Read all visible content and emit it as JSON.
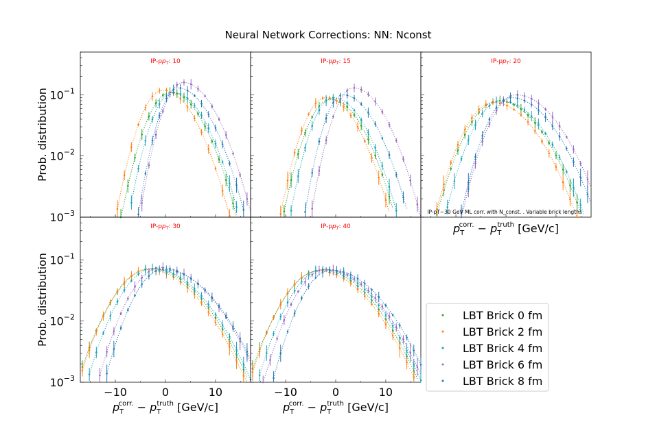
{
  "title": "Neural Network Corrections: NN: Nconst",
  "ylabel": "Prob. distribution",
  "xlabel": {
    "base": "p",
    "sub1": "T",
    "sup1": "corr.",
    "minus": " − ",
    "sub2": "T",
    "sup2": "truth",
    "unit": " [GeV/c]"
  },
  "annotation": "IP-pT~30 GeV ML corr. with N_const. . Variable brick lengths",
  "panel_title_prefix": "IP-p",
  "panel_title_sub": "T",
  "panel_title_suffix": ": ",
  "y_ticks": [
    {
      "label": "10",
      "exp": "−3"
    },
    {
      "label": "10",
      "exp": "−2"
    },
    {
      "label": "10",
      "exp": "−1"
    }
  ],
  "x_ticks": [
    "−10",
    "0",
    "10"
  ],
  "colors": {
    "Brick 0": "#2ca02c",
    "Brick 2": "#ff7f0e",
    "Brick 4": "#17a2b8",
    "Brick 6": "#9467bd",
    "Brick 8": "#1f77b4",
    "panel_title": "#ff0000"
  },
  "legend": {
    "placement": "lower-right (empty 6th panel)",
    "entries": [
      "LBT Brick 0 fm",
      "LBT Brick 2 fm",
      "LBT Brick 4 fm",
      "LBT Brick 6 fm",
      "LBT Brick 8 fm"
    ]
  },
  "chart_data": [
    {
      "type": "scatter",
      "panel": "IP-pT: 10",
      "ip_pt": "10",
      "yscale": "log",
      "ylim": [
        0.001,
        0.5
      ],
      "xlim": [
        -17,
        17
      ],
      "series": [
        {
          "name": "LBT Brick 0 fm",
          "color": "#2ca02c",
          "peak_x": 1,
          "peak_y": 0.11
        },
        {
          "name": "LBT Brick 2 fm",
          "color": "#ff7f0e",
          "peak_x": -0.5,
          "peak_y": 0.12
        },
        {
          "name": "LBT Brick 4 fm",
          "color": "#17a2b8",
          "peak_x": 1.5,
          "peak_y": 0.11
        },
        {
          "name": "LBT Brick 6 fm",
          "color": "#9467bd",
          "peak_x": 3.5,
          "peak_y": 0.16
        },
        {
          "name": "LBT Brick 8 fm",
          "color": "#1f77b4",
          "peak_x": 2.5,
          "peak_y": 0.13
        }
      ]
    },
    {
      "type": "scatter",
      "panel": "IP-pT: 15",
      "ip_pt": "15",
      "yscale": "log",
      "ylim": [
        0.001,
        0.5
      ],
      "xlim": [
        -17,
        17
      ],
      "series": [
        {
          "name": "LBT Brick 0 fm",
          "color": "#2ca02c",
          "peak_x": -1,
          "peak_y": 0.085
        },
        {
          "name": "LBT Brick 2 fm",
          "color": "#ff7f0e",
          "peak_x": -2,
          "peak_y": 0.09
        },
        {
          "name": "LBT Brick 4 fm",
          "color": "#17a2b8",
          "peak_x": -0.5,
          "peak_y": 0.09
        },
        {
          "name": "LBT Brick 6 fm",
          "color": "#9467bd",
          "peak_x": 3.5,
          "peak_y": 0.13
        },
        {
          "name": "LBT Brick 8 fm",
          "color": "#1f77b4",
          "peak_x": 1.5,
          "peak_y": 0.1
        }
      ]
    },
    {
      "type": "scatter",
      "panel": "IP-pT: 20",
      "ip_pt": "20",
      "yscale": "log",
      "ylim": [
        0.001,
        0.5
      ],
      "xlim": [
        -17,
        17
      ],
      "series": [
        {
          "name": "LBT Brick 0 fm",
          "color": "#2ca02c",
          "peak_x": -1.5,
          "peak_y": 0.08
        },
        {
          "name": "LBT Brick 2 fm",
          "color": "#ff7f0e",
          "peak_x": -2.5,
          "peak_y": 0.075
        },
        {
          "name": "LBT Brick 4 fm",
          "color": "#17a2b8",
          "peak_x": -1,
          "peak_y": 0.08
        },
        {
          "name": "LBT Brick 6 fm",
          "color": "#9467bd",
          "peak_x": 2,
          "peak_y": 0.1
        },
        {
          "name": "LBT Brick 8 fm",
          "color": "#1f77b4",
          "peak_x": 1,
          "peak_y": 0.09
        }
      ]
    },
    {
      "type": "scatter",
      "panel": "IP-pT: 30",
      "ip_pt": "30",
      "yscale": "log",
      "ylim": [
        0.001,
        0.5
      ],
      "xlim": [
        -17,
        17
      ],
      "series": [
        {
          "name": "LBT Brick 0 fm",
          "color": "#2ca02c",
          "peak_x": -3,
          "peak_y": 0.072
        },
        {
          "name": "LBT Brick 2 fm",
          "color": "#ff7f0e",
          "peak_x": -3.5,
          "peak_y": 0.07
        },
        {
          "name": "LBT Brick 4 fm",
          "color": "#17a2b8",
          "peak_x": -2.5,
          "peak_y": 0.072
        },
        {
          "name": "LBT Brick 6 fm",
          "color": "#9467bd",
          "peak_x": -1,
          "peak_y": 0.075
        },
        {
          "name": "LBT Brick 8 fm",
          "color": "#1f77b4",
          "peak_x": -0.5,
          "peak_y": 0.07
        }
      ]
    },
    {
      "type": "scatter",
      "panel": "IP-pT: 40",
      "ip_pt": "40",
      "yscale": "log",
      "ylim": [
        0.001,
        0.5
      ],
      "xlim": [
        -17,
        17
      ],
      "series": [
        {
          "name": "LBT Brick 0 fm",
          "color": "#2ca02c",
          "peak_x": -3,
          "peak_y": 0.068
        },
        {
          "name": "LBT Brick 2 fm",
          "color": "#ff7f0e",
          "peak_x": -3.5,
          "peak_y": 0.066
        },
        {
          "name": "LBT Brick 4 fm",
          "color": "#17a2b8",
          "peak_x": -2.5,
          "peak_y": 0.07
        },
        {
          "name": "LBT Brick 6 fm",
          "color": "#9467bd",
          "peak_x": -2,
          "peak_y": 0.07
        },
        {
          "name": "LBT Brick 8 fm",
          "color": "#1f77b4",
          "peak_x": -1,
          "peak_y": 0.068
        }
      ]
    }
  ]
}
